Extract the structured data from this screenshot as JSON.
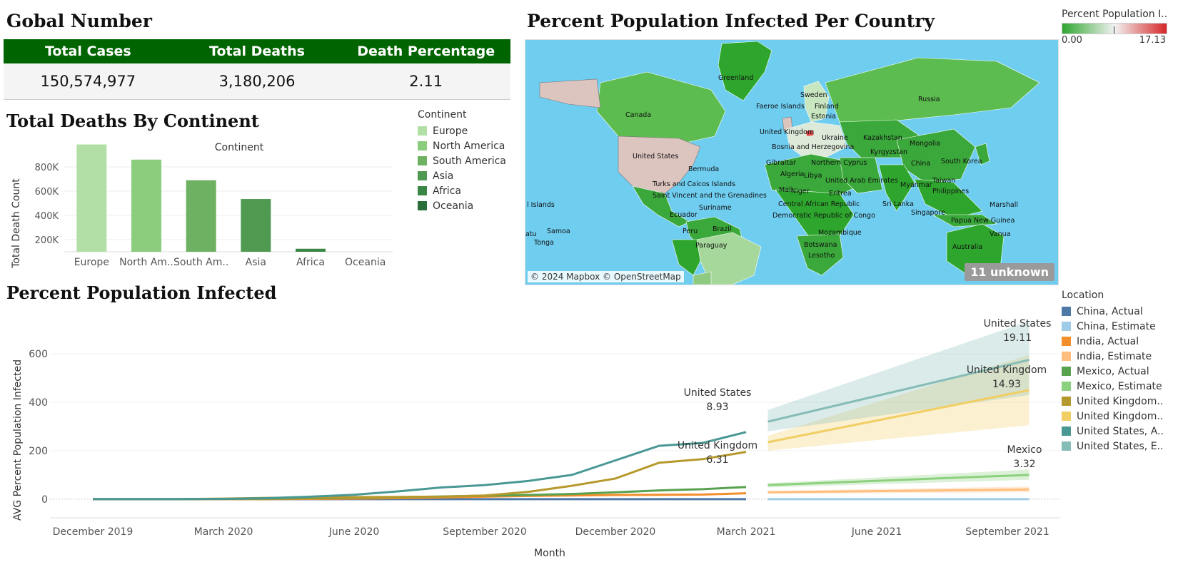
{
  "global": {
    "title": "Gobal Number",
    "headers": [
      "Total Cases",
      "Total Deaths",
      "Death Percentage"
    ],
    "values": [
      "150,574,977",
      "3,180,206",
      "2.11"
    ]
  },
  "deaths_by_continent": {
    "title": "Total Deaths By Continent",
    "legend_title": "Continent",
    "legend": [
      {
        "name": "Europe",
        "color": "#b2dfa5"
      },
      {
        "name": "North America",
        "color": "#8bcc7d"
      },
      {
        "name": "South America",
        "color": "#6fb163"
      },
      {
        "name": "Asia",
        "color": "#4f9a50"
      },
      {
        "name": "Africa",
        "color": "#3a8745"
      },
      {
        "name": "Oceania",
        "color": "#2a6e3b"
      }
    ]
  },
  "map": {
    "title": "Percent Population Infected Per Country",
    "legend_title": "Percent Population I..",
    "scale_min": "0.00",
    "scale_max": "17.13",
    "credit": "© 2024 Mapbox © OpenStreetMap",
    "unknown": "11 unknown",
    "labels": [
      "Greenland",
      "Canada",
      "United States",
      "Bermuda",
      "Turks and Caicos Islands",
      "Saint Vincent and the Grenadines",
      "Ecuador",
      "Peru",
      "Brazil",
      "Paraguay",
      "Suriname",
      "Faeroe Islands",
      "Sweden",
      "Finland",
      "Estonia",
      "United Kingdom",
      "Bosnia and Herzegovina",
      "Ukraine",
      "Gibraltar",
      "Algeria",
      "Libya",
      "Northern Cyprus",
      "United Arab Emirates",
      "Mali",
      "Niger",
      "Eritrea",
      "Central African Republic",
      "Democratic Republic of Congo",
      "Mozambique",
      "Botswana",
      "Lesotho",
      "Russia",
      "Kazakhstan",
      "Kyrgyzstan",
      "Mongolia",
      "China",
      "South Korea",
      "Taiwan",
      "Myanmar",
      "Philippines",
      "Sri Lanka",
      "Singapore",
      "Papua New Guinea",
      "Australia",
      "Marshall",
      "Vanua",
      "Samoa",
      "Tonga",
      "l Islands",
      "atu"
    ]
  },
  "infected_chart": {
    "title": "Percent Population Infected",
    "legend_title": "Location",
    "legend": [
      {
        "name": "China, Actual",
        "color": "#4e79a7"
      },
      {
        "name": "China, Estimate",
        "color": "#a0cbe8"
      },
      {
        "name": "India, Actual",
        "color": "#f28e2b"
      },
      {
        "name": "India, Estimate",
        "color": "#ffbe7d"
      },
      {
        "name": "Mexico, Actual",
        "color": "#59a14f"
      },
      {
        "name": "Mexico, Estimate",
        "color": "#8cd17d"
      },
      {
        "name": "United Kingdom..",
        "color": "#b6992d"
      },
      {
        "name": "United Kingdom..",
        "color": "#f1ce63"
      },
      {
        "name": "United States, A..",
        "color": "#499894"
      },
      {
        "name": "United States, E..",
        "color": "#86bcb6"
      }
    ]
  },
  "chart_data": [
    {
      "type": "bar",
      "title": "Continent",
      "categories": [
        "Europe",
        "North Am..",
        "South Am..",
        "Asia",
        "Africa",
        "Oceania"
      ],
      "values": [
        985000,
        860000,
        690000,
        535000,
        125000,
        1500
      ],
      "ylabel": "Total Death Count",
      "yticks": [
        "200K",
        "400K",
        "600K",
        "800K"
      ],
      "ytick_values": [
        200000,
        400000,
        600000,
        800000
      ],
      "ylim": [
        100000,
        1000000
      ],
      "colors": [
        "#b2dfa5",
        "#8bcc7d",
        "#6fb163",
        "#4f9a50",
        "#3a8745",
        "#2a6e3b"
      ]
    },
    {
      "type": "line",
      "xlabel": "Month",
      "ylabel": "AVG Percent Population Infected",
      "xticks": [
        "December 2019",
        "March 2020",
        "June 2020",
        "September 2020",
        "December 2020",
        "March 2021",
        "June 2021",
        "September 2021"
      ],
      "xtick_months": [
        0,
        3,
        6,
        9,
        12,
        15,
        18,
        21
      ],
      "yticks": [
        "0",
        "200",
        "400",
        "600"
      ],
      "ytick_values": [
        0,
        200,
        400,
        600
      ],
      "ylim": [
        -30,
        780
      ],
      "series": [
        {
          "name": "China, Actual",
          "color": "#4e79a7",
          "months": [
            0,
            1,
            2,
            3,
            4,
            5,
            6,
            7,
            8,
            9,
            10,
            11,
            12,
            13,
            14,
            15
          ],
          "values": [
            0,
            0,
            0,
            0,
            0,
            0,
            0,
            0,
            0,
            0,
            0,
            0,
            0,
            0,
            0,
            0
          ]
        },
        {
          "name": "India, Actual",
          "color": "#f28e2b",
          "months": [
            0,
            1,
            2,
            3,
            4,
            5,
            6,
            7,
            8,
            9,
            10,
            11,
            12,
            13,
            14,
            15
          ],
          "values": [
            0,
            0,
            0,
            0,
            0,
            1,
            2,
            4,
            7,
            10,
            13,
            15,
            17,
            18,
            19,
            24
          ]
        },
        {
          "name": "Mexico, Actual",
          "color": "#59a14f",
          "months": [
            0,
            1,
            2,
            3,
            4,
            5,
            6,
            7,
            8,
            9,
            10,
            11,
            12,
            13,
            14,
            15
          ],
          "values": [
            0,
            0,
            0,
            1,
            2,
            4,
            6,
            8,
            11,
            14,
            17,
            21,
            28,
            36,
            41,
            50
          ]
        },
        {
          "name": "United Kingdom, Actual",
          "color": "#b6992d",
          "months": [
            0,
            1,
            2,
            3,
            4,
            5,
            6,
            7,
            8,
            9,
            10,
            11,
            12,
            13,
            14,
            15
          ],
          "values": [
            0,
            0,
            0,
            2,
            5,
            7,
            8,
            9,
            10,
            15,
            30,
            55,
            85,
            150,
            165,
            195
          ]
        },
        {
          "name": "United States, Actual",
          "color": "#499894",
          "months": [
            0,
            1,
            2,
            3,
            4,
            5,
            6,
            7,
            8,
            9,
            10,
            11,
            12,
            13,
            14,
            15
          ],
          "values": [
            0,
            0,
            0,
            1,
            4,
            10,
            18,
            32,
            48,
            58,
            75,
            100,
            160,
            220,
            232,
            277
          ]
        },
        {
          "name": "China, Estimate",
          "color": "#a0cbe8",
          "months": [
            15.5,
            21.5
          ],
          "values": [
            0,
            0
          ]
        },
        {
          "name": "India, Estimate",
          "color": "#ffbe7d",
          "months": [
            15.5,
            21.5
          ],
          "values": [
            28,
            40
          ],
          "band": [
            [
              22,
              34
            ],
            [
              28,
              52
            ]
          ]
        },
        {
          "name": "Mexico, Estimate",
          "color": "#8cd17d",
          "months": [
            15.5,
            21.5
          ],
          "values": [
            58,
            100
          ],
          "band": [
            [
              48,
              66
            ],
            [
              80,
              122
            ]
          ]
        },
        {
          "name": "United Kingdom, Estimate",
          "color": "#f1ce63",
          "months": [
            15.5,
            21.5
          ],
          "values": [
            235,
            450
          ],
          "band": [
            [
              200,
              262
            ],
            [
              305,
              595
            ]
          ]
        },
        {
          "name": "United States, Estimate",
          "color": "#86bcb6",
          "months": [
            15.5,
            21.5
          ],
          "values": [
            320,
            575
          ],
          "band": [
            [
              280,
              368
            ],
            [
              430,
              735
            ]
          ]
        }
      ],
      "annotations": [
        {
          "text": "United States",
          "value": "8.93"
        },
        {
          "text": "United Kingdom",
          "value": "6.31"
        },
        {
          "text": "United States",
          "value": "19.11"
        },
        {
          "text": "United Kingdom",
          "value": "14.93"
        },
        {
          "text": "Mexico",
          "value": "3.32"
        }
      ]
    }
  ]
}
